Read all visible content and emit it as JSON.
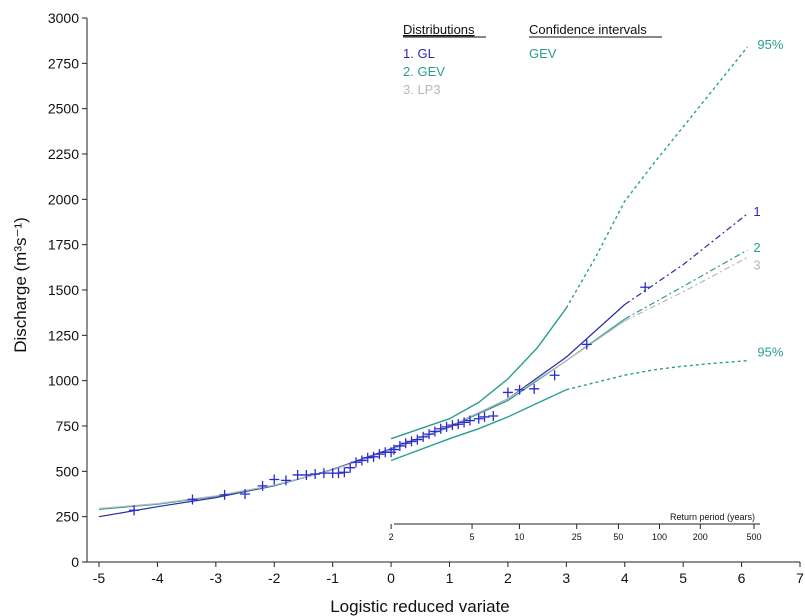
{
  "chart_data": {
    "type": "line",
    "xlabel": "Logistic reduced variate",
    "ylabel": "Discharge (m³s⁻¹)",
    "xlim": [
      -5,
      7
    ],
    "ylim": [
      0,
      3000
    ],
    "x_ticks": [
      -5,
      -4,
      -3,
      -2,
      -1,
      0,
      1,
      2,
      3,
      4,
      5,
      6,
      7
    ],
    "y_ticks": [
      0,
      250,
      500,
      750,
      1000,
      1250,
      1500,
      1750,
      2000,
      2250,
      2500,
      2750,
      3000
    ],
    "grid": false,
    "legend": {
      "distributions_title": "Distributions",
      "distributions": [
        {
          "label": "1. GL",
          "color": "#2a2aa8"
        },
        {
          "label": "2. GEV",
          "color": "#2a9d92"
        },
        {
          "label": "3. LP3",
          "color": "#b8b8b8"
        }
      ],
      "ci_title": "Confidence intervals",
      "ci_items": [
        {
          "label": "GEV",
          "color": "#2a9d92"
        }
      ]
    },
    "series": [
      {
        "name": "1",
        "color": "#2a2aa8",
        "points": [
          [
            -5,
            250
          ],
          [
            -4,
            305
          ],
          [
            -3,
            355
          ],
          [
            -2,
            420
          ],
          [
            -1,
            510
          ],
          [
            0,
            625
          ],
          [
            1,
            745
          ],
          [
            2,
            900
          ],
          [
            3,
            1130
          ],
          [
            4,
            1420
          ],
          [
            5,
            1640
          ],
          [
            6.1,
            1920
          ]
        ]
      },
      {
        "name": "2",
        "color": "#2a9d92",
        "points": [
          [
            -5,
            290
          ],
          [
            -4,
            318
          ],
          [
            -3,
            362
          ],
          [
            -2,
            422
          ],
          [
            -1,
            508
          ],
          [
            0,
            620
          ],
          [
            1,
            745
          ],
          [
            2,
            890
          ],
          [
            3,
            1110
          ],
          [
            4,
            1340
          ],
          [
            5,
            1520
          ],
          [
            6.1,
            1720
          ]
        ]
      },
      {
        "name": "3",
        "color": "#b8b8b8",
        "points": [
          [
            -5,
            295
          ],
          [
            -4,
            322
          ],
          [
            -3,
            365
          ],
          [
            -2,
            424
          ],
          [
            -1,
            508
          ],
          [
            0,
            620
          ],
          [
            1,
            748
          ],
          [
            2,
            900
          ],
          [
            3,
            1110
          ],
          [
            4,
            1330
          ],
          [
            5,
            1490
          ],
          [
            6.1,
            1680
          ]
        ]
      }
    ],
    "confidence_intervals": [
      {
        "label": "95%",
        "position": "upper",
        "color": "#2a9d92",
        "points": [
          [
            0,
            680
          ],
          [
            1,
            790
          ],
          [
            1.5,
            880
          ],
          [
            2,
            1010
          ],
          [
            2.5,
            1180
          ],
          [
            3,
            1400
          ],
          [
            3.5,
            1680
          ],
          [
            4,
            1990
          ],
          [
            4.5,
            2200
          ],
          [
            5,
            2400
          ],
          [
            5.5,
            2600
          ],
          [
            6.1,
            2840
          ]
        ]
      },
      {
        "label": "95%",
        "position": "lower",
        "color": "#2a9d92",
        "points": [
          [
            0,
            560
          ],
          [
            1,
            680
          ],
          [
            1.5,
            735
          ],
          [
            2,
            800
          ],
          [
            2.5,
            875
          ],
          [
            3,
            950
          ],
          [
            3.5,
            990
          ],
          [
            4,
            1030
          ],
          [
            4.5,
            1060
          ],
          [
            5,
            1080
          ],
          [
            5.5,
            1095
          ],
          [
            6.1,
            1110
          ]
        ]
      }
    ],
    "observations": {
      "color": "#2a2ad0",
      "points": [
        [
          -4.4,
          285
        ],
        [
          -3.4,
          345
        ],
        [
          -2.85,
          370
        ],
        [
          -2.5,
          375
        ],
        [
          -2.2,
          420
        ],
        [
          -2.0,
          455
        ],
        [
          -1.8,
          450
        ],
        [
          -1.6,
          480
        ],
        [
          -1.45,
          480
        ],
        [
          -1.3,
          485
        ],
        [
          -1.15,
          490
        ],
        [
          -1.0,
          490
        ],
        [
          -0.9,
          490
        ],
        [
          -0.8,
          495
        ],
        [
          -0.7,
          520
        ],
        [
          -0.6,
          550
        ],
        [
          -0.5,
          560
        ],
        [
          -0.4,
          575
        ],
        [
          -0.3,
          580
        ],
        [
          -0.2,
          595
        ],
        [
          -0.1,
          605
        ],
        [
          0.0,
          605
        ],
        [
          0.05,
          620
        ],
        [
          0.15,
          640
        ],
        [
          0.25,
          655
        ],
        [
          0.35,
          665
        ],
        [
          0.45,
          675
        ],
        [
          0.55,
          690
        ],
        [
          0.65,
          705
        ],
        [
          0.75,
          720
        ],
        [
          0.85,
          735
        ],
        [
          0.95,
          745
        ],
        [
          1.05,
          755
        ],
        [
          1.15,
          760
        ],
        [
          1.25,
          770
        ],
        [
          1.35,
          780
        ],
        [
          1.5,
          790
        ],
        [
          1.6,
          800
        ],
        [
          1.75,
          805
        ],
        [
          2.0,
          935
        ],
        [
          2.2,
          950
        ],
        [
          2.45,
          955
        ],
        [
          2.8,
          1030
        ],
        [
          3.35,
          1200
        ],
        [
          4.35,
          1515
        ]
      ]
    },
    "series_end_labels": [
      "1",
      "2",
      "3"
    ],
    "return_period": {
      "title": "Return period (years)",
      "ticks": [
        {
          "label": "2",
          "x": 0.0
        },
        {
          "label": "5",
          "x": 1.386
        },
        {
          "label": "10",
          "x": 2.197
        },
        {
          "label": "25",
          "x": 3.178
        },
        {
          "label": "50",
          "x": 3.892
        },
        {
          "label": "100",
          "x": 4.595
        },
        {
          "label": "200",
          "x": 5.293
        },
        {
          "label": "500",
          "x": 6.213
        }
      ]
    }
  }
}
